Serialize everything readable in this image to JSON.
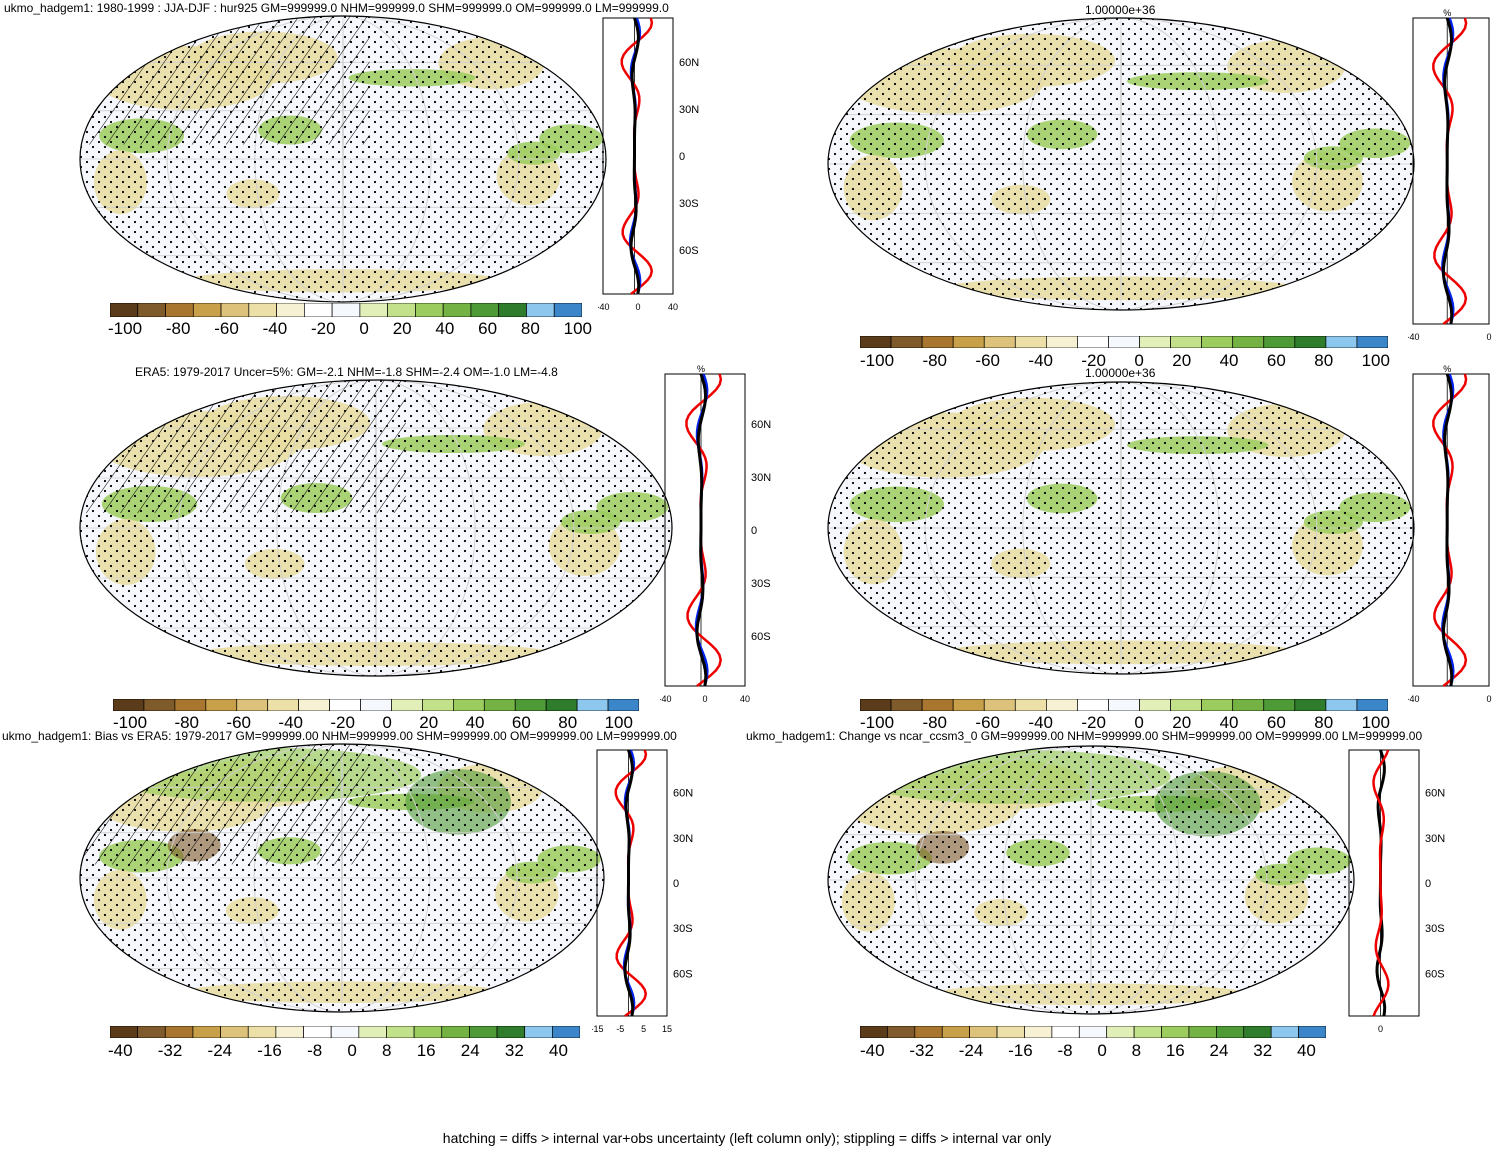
{
  "colors": {
    "palette": [
      "#5a3b1a",
      "#7f5a2a",
      "#a8762e",
      "#c9a04a",
      "#dcc27a",
      "#ece0a8",
      "#f6f1d2",
      "#ffffff",
      "#f5f8fd",
      "#e2efb8",
      "#c3e08a",
      "#9ccc5e",
      "#74b244",
      "#4e9a36",
      "#2f7c2c",
      "#8ec7ee",
      "#3a86c8"
    ],
    "land_green": "#9ccc5e",
    "land_tan": "#e8dca0",
    "ocean": "#f5f7fc",
    "zonal_model": "#000000",
    "zonal_obs": "#0022ee",
    "zonal_diff": "#ee0000"
  },
  "panels": [
    {
      "id": "model",
      "title": "ukmo_hadgem1: 1980-1999 : JJA-DJF : hur925 GM=999999.0 NHM=999999.0 SHM=999999.0 OM=999999.0 LM=999999.0",
      "colorbar_labels": [
        "-100",
        "-80",
        "-60",
        "-40",
        "-20",
        "0",
        "20",
        "40",
        "60",
        "80",
        "100"
      ],
      "zonal_ylabels": [
        "60N",
        "30N",
        "0",
        "30S",
        "60S"
      ],
      "zonal_xlabels": [
        "-40",
        "0",
        "40"
      ],
      "zonal_unit": "",
      "hatching": true
    },
    {
      "id": "model2",
      "title": "1.00000e+36",
      "colorbar_labels": [
        "-100",
        "-80",
        "-60",
        "-40",
        "-20",
        "0",
        "20",
        "40",
        "60",
        "80",
        "100"
      ],
      "zonal_ylabels": [],
      "zonal_xlabels": [
        "-40",
        "0"
      ],
      "zonal_unit": "%",
      "hatching": false
    },
    {
      "id": "obs",
      "title": "ERA5: 1979-2017 Uncer=5%: GM=-2.1 NHM=-1.8 SHM=-2.4 OM=-1.0 LM=-4.8",
      "colorbar_labels": [
        "-100",
        "-80",
        "-60",
        "-40",
        "-20",
        "0",
        "20",
        "40",
        "60",
        "80",
        "100"
      ],
      "zonal_ylabels": [
        "60N",
        "30N",
        "0",
        "30S",
        "60S"
      ],
      "zonal_xlabels": [
        "-40",
        "0",
        "40"
      ],
      "zonal_unit": "%",
      "hatching": true
    },
    {
      "id": "obs2",
      "title": "1.00000e+36",
      "colorbar_labels": [
        "-100",
        "-80",
        "-60",
        "-40",
        "-20",
        "0",
        "20",
        "40",
        "60",
        "80",
        "100"
      ],
      "zonal_ylabels": [],
      "zonal_xlabels": [
        "-40",
        "0"
      ],
      "zonal_unit": "%",
      "hatching": false
    },
    {
      "id": "bias",
      "title": "ukmo_hadgem1: Bias vs ERA5: 1979-2017 GM=999999.00 NHM=999999.00 SHM=999999.00 OM=999999.00 LM=999999.00",
      "colorbar_labels": [
        "-40",
        "-32",
        "-24",
        "-16",
        "-8",
        "0",
        "8",
        "16",
        "24",
        "32",
        "40"
      ],
      "zonal_ylabels": [
        "60N",
        "30N",
        "0",
        "30S",
        "60S"
      ],
      "zonal_xlabels": [
        "-15",
        "-5",
        "5",
        "15"
      ],
      "zonal_unit": "",
      "hatching": true
    },
    {
      "id": "change",
      "title": "ukmo_hadgem1: Change vs ncar_ccsm3_0 GM=999999.00 NHM=999999.00 SHM=999999.00 OM=999999.00 LM=999999.00",
      "colorbar_labels": [
        "-40",
        "-32",
        "-24",
        "-16",
        "-8",
        "0",
        "8",
        "16",
        "24",
        "32",
        "40"
      ],
      "zonal_ylabels": [
        "60N",
        "30N",
        "0",
        "30S",
        "60S"
      ],
      "zonal_xlabels": [
        "0"
      ],
      "zonal_unit": "",
      "hatching": false
    }
  ],
  "footer": "hatching = diffs > internal var+obs uncertainty (left column only); stippling = diffs > internal var only"
}
